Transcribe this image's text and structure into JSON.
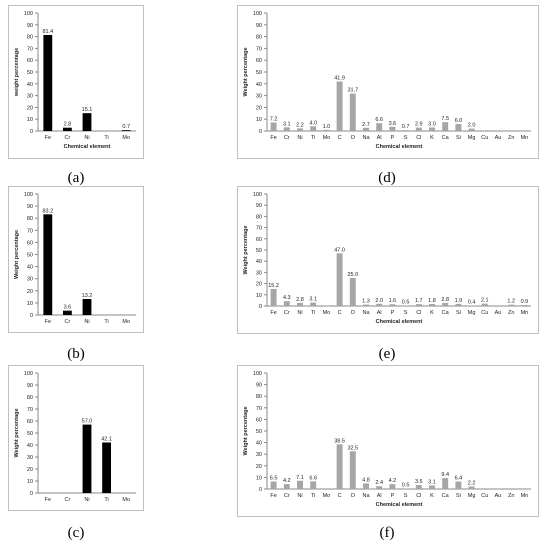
{
  "chart_data": [
    {
      "panel_label": "(a)",
      "type": "bar",
      "categories": [
        "Fe",
        "Cr",
        "Ni",
        "Ti",
        "Mo"
      ],
      "values": [
        81.4,
        2.8,
        15.1,
        null,
        0.7
      ],
      "value_labels": [
        "81.4",
        "2.8",
        "15.1",
        "",
        "0.7"
      ],
      "xlabel": "Chemical element",
      "ylabel": "weight percentage",
      "ylim": [
        0,
        100
      ],
      "yticks": [
        "0",
        "10",
        "20",
        "30",
        "40",
        "50",
        "60",
        "70",
        "80",
        "90",
        "100"
      ],
      "bar_color": "#000000",
      "grid": false
    },
    {
      "panel_label": "(b)",
      "type": "bar",
      "categories": [
        "Fe",
        "Cr",
        "Ni",
        "Ti",
        "Mo"
      ],
      "values": [
        83.2,
        3.6,
        13.2,
        null,
        null
      ],
      "value_labels": [
        "83.2",
        "3.6",
        "13.2",
        "",
        ""
      ],
      "xlabel": "",
      "ylabel": "Weight percentage",
      "ylim": [
        0,
        100
      ],
      "yticks": [
        "0",
        "10",
        "20",
        "30",
        "40",
        "50",
        "60",
        "70",
        "80",
        "90",
        "100"
      ],
      "bar_color": "#000000",
      "grid": false
    },
    {
      "panel_label": "(c)",
      "type": "bar",
      "categories": [
        "Fe",
        "Cr",
        "Ni",
        "Ti",
        "Mo"
      ],
      "values": [
        null,
        null,
        57.0,
        42.1,
        null
      ],
      "value_labels": [
        "",
        "",
        "57.0",
        "42.1",
        ""
      ],
      "xlabel": "",
      "ylabel": "Weight percentage",
      "ylim": [
        0,
        100
      ],
      "yticks": [
        "0",
        "10",
        "20",
        "30",
        "40",
        "50",
        "60",
        "70",
        "80",
        "90",
        "100"
      ],
      "bar_color": "#000000",
      "grid": false
    },
    {
      "panel_label": "(d)",
      "type": "bar",
      "categories": [
        "Fe",
        "Cr",
        "Ni",
        "Ti",
        "Mo",
        "C",
        "O",
        "Na",
        "Al",
        "P",
        "S",
        "Cl",
        "K",
        "Ca",
        "Si",
        "Mg",
        "Cu",
        "Au",
        "Zn",
        "Mn"
      ],
      "values": [
        7.2,
        3.1,
        2.2,
        4.0,
        1.0,
        41.9,
        31.7,
        2.7,
        6.6,
        3.6,
        0.7,
        2.9,
        3.0,
        7.5,
        6.0,
        2.0,
        null,
        null,
        null,
        null
      ],
      "value_labels": [
        "7.2",
        "3.1",
        "2.2",
        "4.0",
        "1.0",
        "41.9",
        "31.7",
        "2.7",
        "6.6",
        "3.6",
        "0.7",
        "2.9",
        "3.0",
        "7.5",
        "6.0",
        "2.0",
        "",
        "",
        "",
        ""
      ],
      "xlabel": "Chemical element",
      "ylabel": "Weight percentage",
      "ylim": [
        0,
        100
      ],
      "yticks": [
        "0",
        "10",
        "20",
        "30",
        "40",
        "50",
        "60",
        "70",
        "80",
        "90",
        "100"
      ],
      "bar_color": "#a6a6a6",
      "grid": false
    },
    {
      "panel_label": "(e)",
      "type": "bar",
      "categories": [
        "Fe",
        "Cr",
        "Ni",
        "Ti",
        "Mo",
        "C",
        "O",
        "Na",
        "Al",
        "P",
        "S",
        "Cl",
        "K",
        "Ca",
        "Si",
        "Mg",
        "Cu",
        "Au",
        "Zn",
        "Mn"
      ],
      "values": [
        15.2,
        4.3,
        2.8,
        3.1,
        null,
        47.0,
        25.0,
        1.3,
        2.0,
        1.6,
        0.5,
        1.7,
        1.8,
        2.8,
        1.9,
        0.4,
        2.1,
        null,
        1.2,
        0.9
      ],
      "value_labels": [
        "15.2",
        "4.3",
        "2.8",
        "3.1",
        "",
        "47.0",
        "25.0",
        "1.3",
        "2.0",
        "1.6",
        "0.5",
        "1.7",
        "1.8",
        "2.8",
        "1.9",
        "0.4",
        "2.1",
        "",
        "1.2",
        "0.9"
      ],
      "xlabel": "Chemical element",
      "ylabel": "Weight percentage",
      "ylim": [
        0,
        100
      ],
      "yticks": [
        "0",
        "10",
        "20",
        "30",
        "40",
        "50",
        "60",
        "70",
        "80",
        "90",
        "100"
      ],
      "bar_color": "#a6a6a6",
      "grid": false
    },
    {
      "panel_label": "(f)",
      "type": "bar",
      "categories": [
        "Fe",
        "Cr",
        "Ni",
        "Ti",
        "Mo",
        "C",
        "O",
        "Na",
        "Al",
        "P",
        "S",
        "Cl",
        "K",
        "Ca",
        "Si",
        "Mg",
        "Cu",
        "Au",
        "Zn",
        "Mn"
      ],
      "values": [
        6.5,
        4.2,
        7.1,
        6.6,
        null,
        38.5,
        32.5,
        4.8,
        2.4,
        4.2,
        0.5,
        3.5,
        3.1,
        9.4,
        6.4,
        2.2,
        null,
        null,
        null,
        null
      ],
      "value_labels": [
        "6.5",
        "4.2",
        "7.1",
        "6.6",
        "",
        "38.5",
        "32.5",
        "4.8",
        "2.4",
        "4.2",
        "0.5",
        "3.5",
        "3.1",
        "9.4",
        "6.4",
        "2.2",
        "",
        "",
        "",
        ""
      ],
      "xlabel": "Chemical element",
      "ylabel": "Weight percentage",
      "ylim": [
        0,
        100
      ],
      "yticks": [
        "0",
        "10",
        "20",
        "30",
        "40",
        "50",
        "60",
        "70",
        "80",
        "90",
        "100"
      ],
      "bar_color": "#a6a6a6",
      "grid": false
    }
  ]
}
